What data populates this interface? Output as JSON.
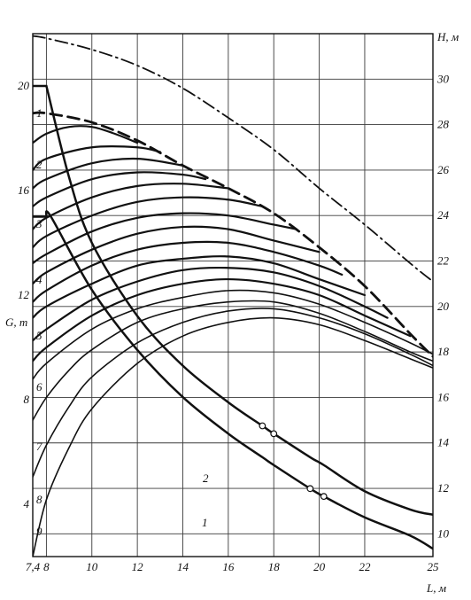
{
  "chart_data": {
    "type": "line",
    "title": "",
    "x_axis": {
      "label": "L, м",
      "min": 7.4,
      "max": 25,
      "ticks": [
        "7,4",
        "8",
        "10",
        "12",
        "14",
        "16",
        "18",
        "20",
        "22",
        "25"
      ]
    },
    "y_axis_left": {
      "label": "G, т",
      "min": 2,
      "max": 22,
      "ticks": [
        "4",
        "8",
        "12",
        "16",
        "20"
      ]
    },
    "y_axis_right": {
      "label": "H, м",
      "min": 9,
      "max": 32,
      "ticks": [
        "10",
        "12",
        "14",
        "16",
        "18",
        "20",
        "22",
        "24",
        "26",
        "28",
        "30"
      ]
    },
    "series": [
      {
        "axis": "right",
        "style": "dashdot",
        "x": [
          7.4,
          8,
          10,
          12,
          14,
          16,
          18,
          20,
          22,
          24,
          25
        ],
        "y": [
          31.9,
          31.8,
          31.3,
          30.6,
          29.6,
          28.3,
          26.9,
          25.2,
          23.6,
          21.9,
          21.1
        ]
      },
      {
        "axis": "right",
        "style": "dashed",
        "x": [
          7.4,
          8,
          10,
          12,
          14,
          16,
          18,
          20,
          22,
          24,
          25
        ],
        "y": [
          28.5,
          28.5,
          28.1,
          27.3,
          26.2,
          25.2,
          24.1,
          22.6,
          20.9,
          18.8,
          17.8
        ]
      },
      {
        "name": "1",
        "axis": "right",
        "x": [
          7.4,
          8,
          9,
          10,
          11,
          12
        ],
        "y": [
          27.2,
          27.6,
          27.9,
          27.9,
          27.6,
          27.2
        ]
      },
      {
        "name": "2",
        "axis": "right",
        "x": [
          7.4,
          8,
          10,
          12,
          13
        ],
        "y": [
          26.0,
          26.5,
          27.0,
          27.0,
          26.8
        ]
      },
      {
        "axis": "right",
        "x": [
          7.4,
          8,
          10,
          12,
          14
        ],
        "y": [
          25.2,
          25.6,
          26.3,
          26.5,
          26.2
        ]
      },
      {
        "axis": "right",
        "x": [
          7.4,
          8,
          10,
          12,
          14,
          15
        ],
        "y": [
          24.4,
          24.8,
          25.6,
          25.9,
          25.8,
          25.6
        ]
      },
      {
        "name": "3",
        "axis": "right",
        "x": [
          7.4,
          8,
          10,
          12,
          14,
          16
        ],
        "y": [
          23.4,
          23.9,
          24.8,
          25.3,
          25.4,
          25.2
        ]
      },
      {
        "axis": "right",
        "x": [
          7.4,
          8,
          10,
          12,
          14,
          16,
          17.5
        ],
        "y": [
          22.6,
          23.1,
          24.0,
          24.6,
          24.8,
          24.7,
          24.4
        ]
      },
      {
        "axis": "right",
        "x": [
          7.4,
          8,
          10,
          12,
          14,
          16,
          18,
          19
        ],
        "y": [
          21.9,
          22.3,
          23.3,
          23.9,
          24.1,
          24.0,
          23.6,
          23.4
        ]
      },
      {
        "name": "4",
        "axis": "right",
        "x": [
          7.4,
          8,
          10,
          12,
          14,
          16,
          18,
          20
        ],
        "y": [
          21.0,
          21.5,
          22.5,
          23.2,
          23.5,
          23.4,
          22.9,
          22.4
        ]
      },
      {
        "axis": "right",
        "x": [
          7.4,
          8,
          10,
          12,
          14,
          16,
          18,
          20,
          21
        ],
        "y": [
          20.2,
          20.7,
          21.8,
          22.5,
          22.8,
          22.8,
          22.4,
          21.8,
          21.4
        ]
      },
      {
        "axis": "right",
        "x": [
          7.4,
          8,
          10,
          12,
          14,
          16,
          18,
          20,
          22
        ],
        "y": [
          19.5,
          20.0,
          21.0,
          21.8,
          22.1,
          22.2,
          21.9,
          21.2,
          20.5
        ]
      },
      {
        "name": "5",
        "axis": "right",
        "x": [
          7.4,
          8,
          10,
          12,
          14,
          16,
          18,
          20,
          22,
          23
        ],
        "y": [
          18.5,
          19.0,
          20.3,
          21.1,
          21.6,
          21.7,
          21.5,
          20.9,
          20.0,
          19.5
        ]
      },
      {
        "axis": "right",
        "x": [
          7.4,
          8,
          10,
          12,
          14,
          16,
          18,
          20,
          22,
          24
        ],
        "y": [
          17.6,
          18.2,
          19.6,
          20.5,
          21.0,
          21.2,
          21.0,
          20.5,
          19.6,
          18.7
        ]
      },
      {
        "name": "6",
        "axis": "right",
        "x": [
          7.4,
          8,
          10,
          12,
          14,
          16,
          18,
          20,
          22,
          24,
          25
        ],
        "y": [
          16.8,
          17.5,
          19.0,
          19.9,
          20.4,
          20.7,
          20.6,
          20.1,
          19.3,
          18.4,
          17.9
        ]
      },
      {
        "name": "7",
        "axis": "right",
        "x": [
          7.4,
          8,
          9,
          10,
          12,
          14,
          16,
          18,
          20,
          22,
          24,
          25
        ],
        "y": [
          15.0,
          16.0,
          17.2,
          18.1,
          19.3,
          19.9,
          20.2,
          20.2,
          19.7,
          18.9,
          18.0,
          17.6
        ]
      },
      {
        "name": "8",
        "axis": "right",
        "x": [
          7.4,
          8,
          9,
          10,
          12,
          14,
          16,
          18,
          20,
          22,
          24,
          25
        ],
        "y": [
          12.5,
          13.9,
          15.6,
          16.9,
          18.4,
          19.3,
          19.8,
          19.9,
          19.5,
          18.8,
          17.9,
          17.4
        ]
      },
      {
        "name": "9",
        "axis": "right",
        "x": [
          7.4,
          8,
          9,
          10,
          12,
          14,
          16,
          18,
          20,
          22,
          24,
          25
        ],
        "y": [
          9.0,
          11.5,
          13.8,
          15.5,
          17.5,
          18.7,
          19.3,
          19.5,
          19.2,
          18.5,
          17.7,
          17.3
        ]
      },
      {
        "name": "2",
        "axis": "left",
        "x": [
          7.4,
          8,
          9,
          10,
          12,
          14,
          16,
          17.5,
          18,
          19.6,
          20.2,
          22,
          24,
          25
        ],
        "y": [
          20.0,
          20.0,
          16.5,
          14.0,
          11.2,
          9.3,
          7.9,
          7.0,
          6.7,
          5.8,
          5.5,
          4.5,
          3.8,
          3.6
        ]
      },
      {
        "name": "1",
        "axis": "left",
        "x": [
          7.4,
          8,
          8.2,
          10,
          12,
          14,
          16,
          17.5,
          18,
          19.6,
          20.2,
          22,
          24,
          25
        ],
        "y": [
          15.0,
          15.0,
          15.0,
          12.2,
          9.9,
          8.1,
          6.7,
          5.8,
          5.5,
          4.6,
          4.3,
          3.5,
          2.8,
          2.3
        ]
      }
    ],
    "markers": [
      {
        "axis": "left",
        "x": 17.5,
        "y": 7.0
      },
      {
        "axis": "left",
        "x": 18.0,
        "y": 6.7
      },
      {
        "axis": "left",
        "x": 19.6,
        "y": 4.6
      },
      {
        "axis": "left",
        "x": 20.2,
        "y": 4.3
      }
    ],
    "curve_labels_left": [
      "1",
      "2",
      "3",
      "4",
      "5",
      "6",
      "7",
      "8",
      "9"
    ],
    "lower_curve_labels": [
      "2",
      "1"
    ],
    "grid": true,
    "legend": "none"
  }
}
